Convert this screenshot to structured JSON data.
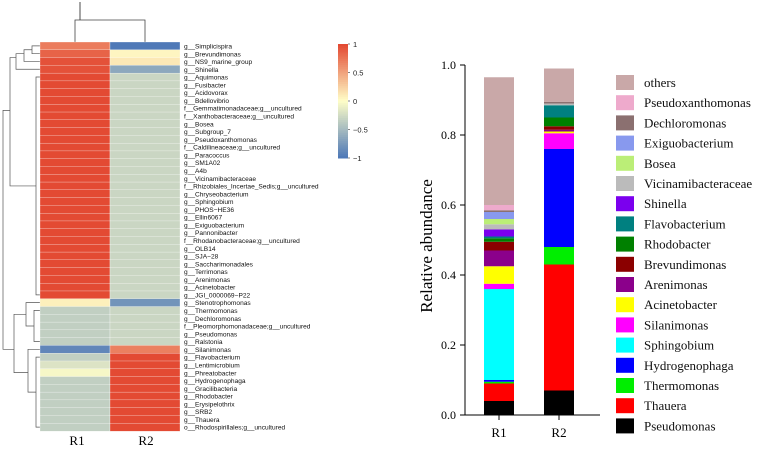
{
  "heatmap": {
    "columns": [
      "R1",
      "R2"
    ],
    "colorbar": {
      "ticks": [
        "1",
        "0.5",
        "0",
        "−0.5",
        "−1"
      ],
      "tick_values": [
        1,
        0.5,
        0,
        -0.5,
        -1
      ],
      "colors": {
        "high": "#e34a33",
        "mid": "#fffec8",
        "low": "#4f79b7"
      }
    },
    "rows": [
      {
        "label": "g__Simplicispira",
        "values": [
          0.72,
          -1.0
        ]
      },
      {
        "label": "g__Brevundimonas",
        "values": [
          0.86,
          0.05
        ]
      },
      {
        "label": "g__NS9_marine_group",
        "values": [
          0.96,
          0.12
        ]
      },
      {
        "label": "g__Shinella",
        "values": [
          0.96,
          -0.65
        ]
      },
      {
        "label": "g__Aquimonas",
        "values": [
          1.0,
          -0.3
        ]
      },
      {
        "label": "g__Fusibacter",
        "values": [
          1.0,
          -0.3
        ]
      },
      {
        "label": "g__Acidovorax",
        "values": [
          1.0,
          -0.3
        ]
      },
      {
        "label": "g__Bdellovibrio",
        "values": [
          1.0,
          -0.3
        ]
      },
      {
        "label": "f__Gemmatimonadaceae;g__uncultured",
        "values": [
          1.0,
          -0.3
        ]
      },
      {
        "label": "f__Xanthobacteraceae;g__uncultured",
        "values": [
          1.0,
          -0.3
        ]
      },
      {
        "label": "g__Bosea",
        "values": [
          1.0,
          -0.3
        ]
      },
      {
        "label": "g__Subgroup_7",
        "values": [
          1.0,
          -0.3
        ]
      },
      {
        "label": "g__Pseudoxanthomonas",
        "values": [
          1.0,
          -0.3
        ]
      },
      {
        "label": "f__Caldilineaceae;g__uncultured",
        "values": [
          1.0,
          -0.3
        ]
      },
      {
        "label": "g__Paracoccus",
        "values": [
          1.0,
          -0.3
        ]
      },
      {
        "label": "g__SM1A02",
        "values": [
          1.0,
          -0.3
        ]
      },
      {
        "label": "g__A4b",
        "values": [
          1.0,
          -0.3
        ]
      },
      {
        "label": "g__Vicinamibacteraceae",
        "values": [
          1.0,
          -0.3
        ]
      },
      {
        "label": "f__Rhizobiales_Incertae_Sedis;g__uncultured",
        "values": [
          1.0,
          -0.3
        ]
      },
      {
        "label": "g__Chryseobacterium",
        "values": [
          1.0,
          -0.3
        ]
      },
      {
        "label": "g__Sphingobium",
        "values": [
          1.0,
          -0.3
        ]
      },
      {
        "label": "g__PHOS−HE36",
        "values": [
          1.0,
          -0.3
        ]
      },
      {
        "label": "g__Ellin6067",
        "values": [
          1.0,
          -0.3
        ]
      },
      {
        "label": "g__Exiguobacterium",
        "values": [
          1.0,
          -0.3
        ]
      },
      {
        "label": "g__Pannonibacter",
        "values": [
          1.0,
          -0.3
        ]
      },
      {
        "label": "f__Rhodanobacteraceae;g__uncultured",
        "values": [
          1.0,
          -0.3
        ]
      },
      {
        "label": "g__OLB14",
        "values": [
          1.0,
          -0.3
        ]
      },
      {
        "label": "g__SJA−28",
        "values": [
          1.0,
          -0.3
        ]
      },
      {
        "label": "g__Saccharimonadales",
        "values": [
          1.0,
          -0.3
        ]
      },
      {
        "label": "g__Terrimonas",
        "values": [
          1.0,
          -0.3
        ]
      },
      {
        "label": "g__Arenimonas",
        "values": [
          1.0,
          -0.3
        ]
      },
      {
        "label": "g__Acinetobacter",
        "values": [
          1.0,
          -0.3
        ]
      },
      {
        "label": "g__JGI_0000069−P22",
        "values": [
          1.0,
          -0.3
        ]
      },
      {
        "label": "g__Stenotrophomonas",
        "values": [
          0.08,
          -0.8
        ]
      },
      {
        "label": "g__Thermomonas",
        "values": [
          -0.35,
          -0.3
        ]
      },
      {
        "label": "g__Dechloromonas",
        "values": [
          -0.35,
          -0.3
        ]
      },
      {
        "label": "f__Pleomorphomonadaceae;g__uncultured",
        "values": [
          -0.35,
          -0.3
        ]
      },
      {
        "label": "g__Pseudomonas",
        "values": [
          -0.35,
          -0.3
        ]
      },
      {
        "label": "g__Ralstonia",
        "values": [
          -0.35,
          -0.3
        ]
      },
      {
        "label": "g__Silanimonas",
        "values": [
          -0.9,
          0.7
        ]
      },
      {
        "label": "g__Flavobacterium",
        "values": [
          -0.35,
          1.0
        ]
      },
      {
        "label": "g__Lentimicrobium",
        "values": [
          -0.2,
          1.0
        ]
      },
      {
        "label": "g__Phreatobacter",
        "values": [
          -0.05,
          1.0
        ]
      },
      {
        "label": "g__Hydrogenophaga",
        "values": [
          -0.35,
          1.0
        ]
      },
      {
        "label": "g__Gracilibacteria",
        "values": [
          -0.35,
          1.0
        ]
      },
      {
        "label": "g__Rhodobacter",
        "values": [
          -0.35,
          1.0
        ]
      },
      {
        "label": "g__Erysipelothrix",
        "values": [
          -0.35,
          1.0
        ]
      },
      {
        "label": "g__SRB2",
        "values": [
          -0.35,
          1.0
        ]
      },
      {
        "label": "g__Thauera",
        "values": [
          -0.35,
          1.0
        ]
      },
      {
        "label": "o__Rhodospirillales;g__uncultured",
        "values": [
          -0.35,
          1.0
        ]
      }
    ]
  },
  "chart_data": {
    "type": "bar",
    "stacked": true,
    "categories": [
      "R1",
      "R2"
    ],
    "ylabel": "Relative abundance",
    "xlabel": "",
    "ylim": [
      0,
      1.0
    ],
    "y_ticks": [
      "0.0",
      "0.2",
      "0.4",
      "0.6",
      "0.8",
      "1.0"
    ],
    "legend_position": "right",
    "series": [
      {
        "name": "Pseudomonas",
        "color": "#000000",
        "values": [
          0.04,
          0.07
        ]
      },
      {
        "name": "Thauera",
        "color": "#ff0000",
        "values": [
          0.05,
          0.36
        ]
      },
      {
        "name": "Thermomonas",
        "color": "#00ee00",
        "values": [
          0.005,
          0.05
        ]
      },
      {
        "name": "Hydrogenophaga",
        "color": "#0000ff",
        "values": [
          0.005,
          0.28
        ]
      },
      {
        "name": "Sphingobium",
        "color": "#00ffff",
        "values": [
          0.26,
          0.0
        ]
      },
      {
        "name": "Silanimonas",
        "color": "#ff00ff",
        "values": [
          0.015,
          0.045
        ]
      },
      {
        "name": "Acinetobacter",
        "color": "#ffff00",
        "values": [
          0.05,
          0.005
        ]
      },
      {
        "name": "Arenimonas",
        "color": "#8b008b",
        "values": [
          0.045,
          0.005
        ]
      },
      {
        "name": "Brevundimonas",
        "color": "#8b0000",
        "values": [
          0.025,
          0.01
        ]
      },
      {
        "name": "Rhodobacter",
        "color": "#008000",
        "values": [
          0.01,
          0.025
        ]
      },
      {
        "name": "Flavobacterium",
        "color": "#008080",
        "values": [
          0.005,
          0.035
        ]
      },
      {
        "name": "Shinella",
        "color": "#7b00ee",
        "values": [
          0.02,
          0.0
        ]
      },
      {
        "name": "Vicinamibacteraceae",
        "color": "#bbbbbb",
        "values": [
          0.015,
          0.005
        ]
      },
      {
        "name": "Bosea",
        "color": "#bbee77",
        "values": [
          0.015,
          0.0
        ]
      },
      {
        "name": "Exiguobacterium",
        "color": "#8899ee",
        "values": [
          0.02,
          0.0
        ]
      },
      {
        "name": "Dechloromonas",
        "color": "#8b7070",
        "values": [
          0.005,
          0.005
        ]
      },
      {
        "name": "Pseudoxanthomonas",
        "color": "#eeaacc",
        "values": [
          0.015,
          0.0
        ]
      },
      {
        "name": "others",
        "color": "#c9a8a8",
        "values": [
          0.365,
          0.095
        ]
      }
    ]
  }
}
